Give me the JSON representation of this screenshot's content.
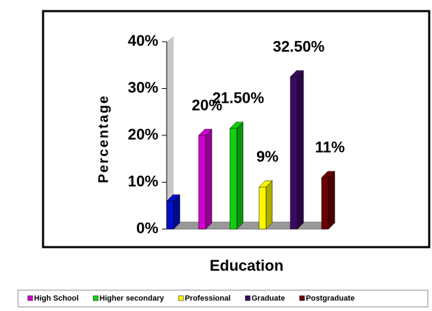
{
  "chart_data": {
    "type": "bar3d",
    "x_label": "Education",
    "y_label": "Percentage",
    "categories": [
      null,
      "High School",
      "Higher secondary",
      "Professional",
      "Graduate",
      "Postgraduate"
    ],
    "values": [
      6,
      20,
      21.5,
      9,
      32.5,
      11
    ],
    "value_labels": [
      null,
      "20%",
      "21.50%",
      "9%",
      "32.50%",
      "11%"
    ],
    "colors": [
      "#0010c8",
      "#d000d0",
      "#10d010",
      "#f8f800",
      "#3a0a60",
      "#6a0000"
    ],
    "ylim": [
      0,
      40
    ],
    "yticks": [
      {
        "value": 0,
        "label": "0%"
      },
      {
        "value": 10,
        "label": "10%"
      },
      {
        "value": 20,
        "label": "20%"
      },
      {
        "value": 30,
        "label": "30%"
      },
      {
        "value": 40,
        "label": "40%"
      }
    ],
    "legend": "bottom"
  }
}
